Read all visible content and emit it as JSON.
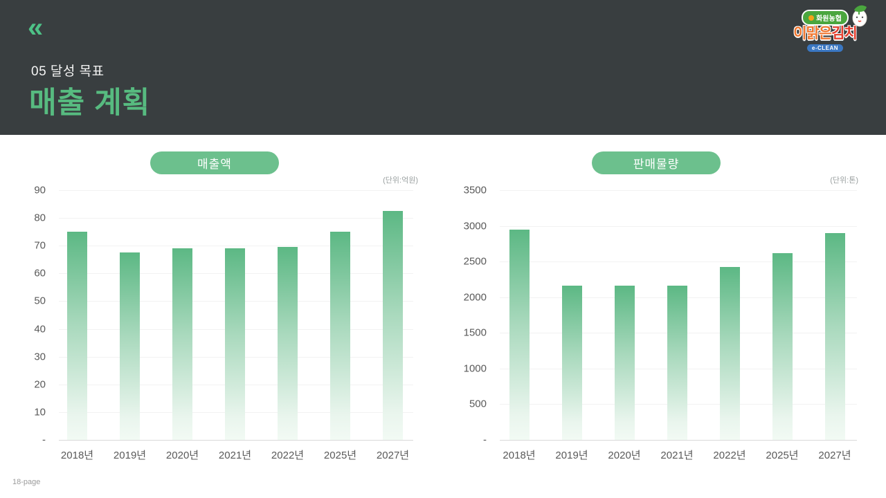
{
  "header": {
    "back_symbol": "«",
    "kicker": "05 달성 목표",
    "title": "매출 계획",
    "accent_color": "#57bb80",
    "background_color": "#393e40"
  },
  "logo": {
    "coop_badge": "화원농협",
    "brand_part1": "이맑은",
    "brand_part2": "김치",
    "sub": "e-CLEAN"
  },
  "footer": {
    "page_label": "18-page"
  },
  "chart_data": [
    {
      "type": "bar",
      "title": "매출액",
      "unit_label": "(단위:억원)",
      "categories": [
        "2018년",
        "2019년",
        "2020년",
        "2021년",
        "2022년",
        "2025년",
        "2027년"
      ],
      "values": [
        75,
        67.5,
        69,
        69,
        69.5,
        75,
        82.5
      ],
      "xlabel": "",
      "ylabel": "",
      "ylim": [
        0,
        90
      ],
      "yticks": [
        90,
        80,
        70,
        60,
        50,
        40,
        30,
        20,
        10
      ],
      "zero_tick_label": "-",
      "grid": true,
      "legend_position": "none",
      "bar_color_top": "#5cb884",
      "bar_color_bottom": "#f2faf4"
    },
    {
      "type": "bar",
      "title": "판매물량",
      "unit_label": "(단위:톤)",
      "categories": [
        "2018년",
        "2019년",
        "2020년",
        "2021년",
        "2022년",
        "2025년",
        "2027년"
      ],
      "values": [
        2950,
        2160,
        2160,
        2160,
        2420,
        2620,
        2900
      ],
      "xlabel": "",
      "ylabel": "",
      "ylim": [
        0,
        3500
      ],
      "yticks": [
        3500,
        3000,
        2500,
        2000,
        1500,
        1000,
        500
      ],
      "zero_tick_label": "-",
      "grid": true,
      "legend_position": "none",
      "bar_color_top": "#5cb884",
      "bar_color_bottom": "#f2faf4"
    }
  ]
}
